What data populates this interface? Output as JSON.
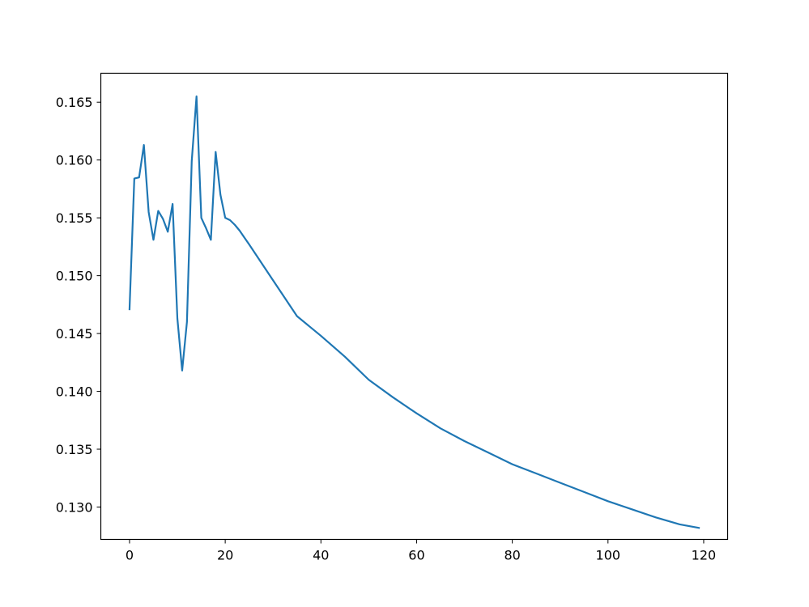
{
  "chart_data": {
    "type": "line",
    "title": "",
    "xlabel": "",
    "ylabel": "",
    "xlim": [
      -6,
      125
    ],
    "ylim": [
      0.1272,
      0.1675
    ],
    "x_ticks": [
      0,
      20,
      40,
      60,
      80,
      100,
      120
    ],
    "y_ticks": [
      0.13,
      0.135,
      0.14,
      0.145,
      0.15,
      0.155,
      0.16,
      0.165
    ],
    "x_tick_labels": [
      "0",
      "20",
      "40",
      "60",
      "80",
      "100",
      "120"
    ],
    "y_tick_labels": [
      "0.130",
      "0.135",
      "0.140",
      "0.145",
      "0.150",
      "0.155",
      "0.160",
      "0.165"
    ],
    "grid": false,
    "series": [
      {
        "color": "#1f77b4",
        "x": [
          0,
          1,
          2,
          3,
          4,
          5,
          6,
          7,
          8,
          9,
          10,
          11,
          12,
          13,
          14,
          15,
          16,
          17,
          18,
          19,
          20,
          21,
          22,
          23,
          24,
          25,
          30,
          35,
          40,
          45,
          50,
          55,
          60,
          65,
          70,
          75,
          80,
          85,
          90,
          95,
          100,
          105,
          110,
          115,
          119
        ],
        "y": [
          0.1471,
          0.1584,
          0.1585,
          0.1613,
          0.1555,
          0.1531,
          0.1556,
          0.1549,
          0.1538,
          0.1562,
          0.1463,
          0.1418,
          0.146,
          0.1599,
          0.1655,
          0.155,
          0.1541,
          0.1531,
          0.1607,
          0.157,
          0.155,
          0.1548,
          0.1544,
          0.1539,
          0.1533,
          0.1527,
          0.1496,
          0.1465,
          0.1448,
          0.143,
          0.141,
          0.1395,
          0.1381,
          0.1368,
          0.1357,
          0.1347,
          0.1337,
          0.1329,
          0.1321,
          0.1313,
          0.1305,
          0.1298,
          0.1291,
          0.1285,
          0.1282
        ]
      }
    ]
  }
}
